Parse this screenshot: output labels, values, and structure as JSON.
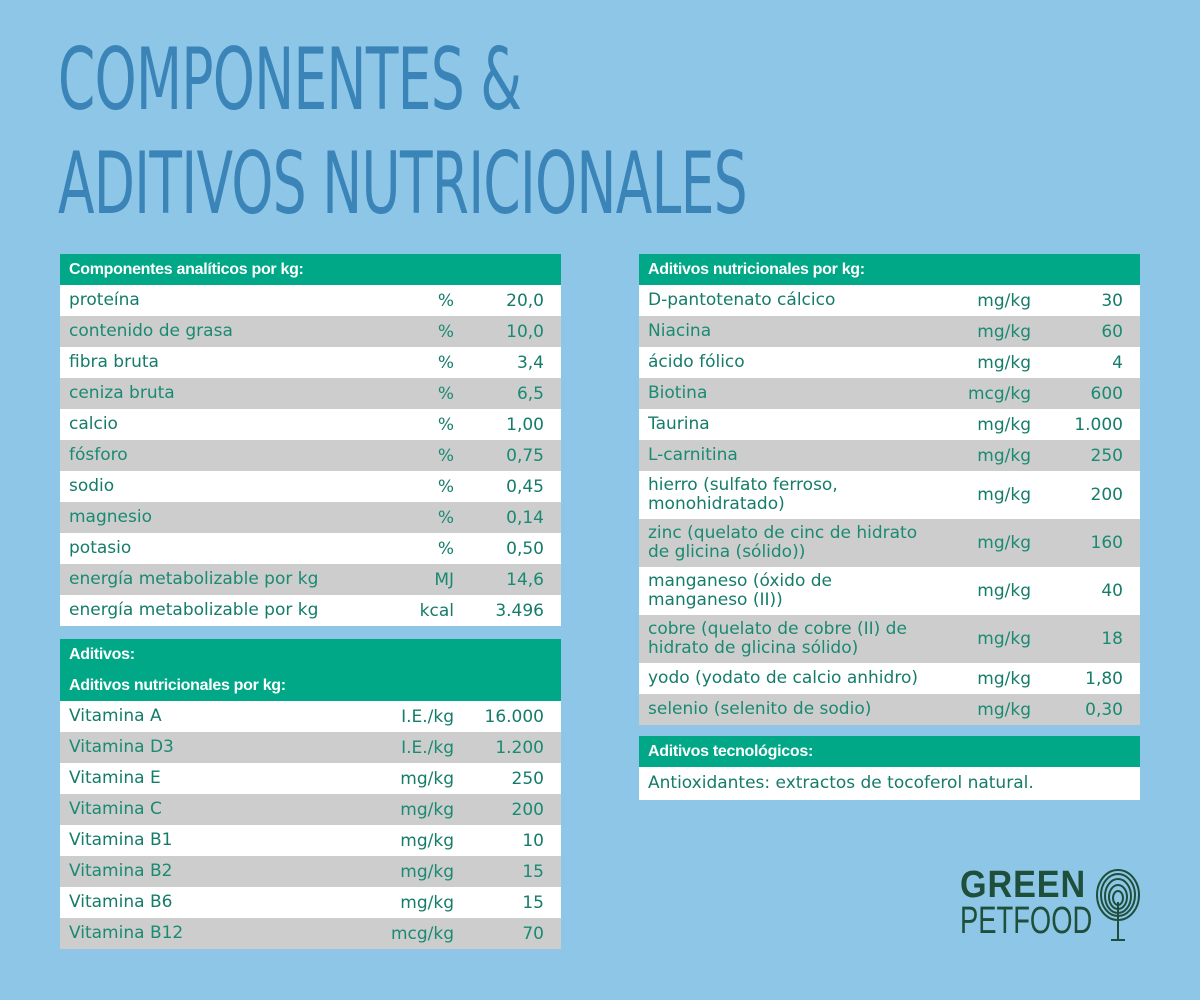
{
  "title": {
    "line1": "Componentes &",
    "line2": "Aditivos nutricionales"
  },
  "analytic": {
    "header": "Componentes analíticos por kg:",
    "rows": [
      {
        "name": "proteína",
        "unit": "%",
        "value": "20,0"
      },
      {
        "name": "contenido de grasa",
        "unit": "%",
        "value": "10,0"
      },
      {
        "name": "fibra bruta",
        "unit": "%",
        "value": "3,4"
      },
      {
        "name": "ceniza bruta",
        "unit": "%",
        "value": "6,5"
      },
      {
        "name": "calcio",
        "unit": "%",
        "value": "1,00"
      },
      {
        "name": "fósforo",
        "unit": "%",
        "value": "0,75"
      },
      {
        "name": "sodio",
        "unit": "%",
        "value": "0,45"
      },
      {
        "name": "magnesio",
        "unit": "%",
        "value": "0,14"
      },
      {
        "name": "potasio",
        "unit": "%",
        "value": "0,50"
      },
      {
        "name": "energía metabolizable por kg",
        "unit": "MJ",
        "value": "14,6"
      },
      {
        "name": "energía metabolizable por kg",
        "unit": "kcal",
        "value": "3.496"
      }
    ]
  },
  "additives": {
    "header": "Aditivos:",
    "subheader": "Aditivos nutricionales por kg:",
    "rows": [
      {
        "name": "Vitamina A",
        "unit": "I.E./kg",
        "value": "16.000"
      },
      {
        "name": "Vitamina D3",
        "unit": "I.E./kg",
        "value": "1.200"
      },
      {
        "name": "Vitamina E",
        "unit": "mg/kg",
        "value": "250"
      },
      {
        "name": "Vitamina C",
        "unit": "mg/kg",
        "value": "200"
      },
      {
        "name": "Vitamina B1",
        "unit": "mg/kg",
        "value": "10"
      },
      {
        "name": "Vitamina B2",
        "unit": "mg/kg",
        "value": "15"
      },
      {
        "name": "Vitamina B6",
        "unit": "mg/kg",
        "value": "15"
      },
      {
        "name": "Vitamina B12",
        "unit": "mcg/kg",
        "value": "70"
      }
    ]
  },
  "nutritional": {
    "header": "Aditivos nutricionales por kg:",
    "rows": [
      {
        "name": "D-pantotenato cálcico",
        "unit": "mg/kg",
        "value": "30"
      },
      {
        "name": "Niacina",
        "unit": "mg/kg",
        "value": "60"
      },
      {
        "name": "ácido fólico",
        "unit": "mg/kg",
        "value": "4"
      },
      {
        "name": "Biotina",
        "unit": "mcg/kg",
        "value": "600"
      },
      {
        "name": "Taurina",
        "unit": "mg/kg",
        "value": "1.000"
      },
      {
        "name": "L-carnitina",
        "unit": "mg/kg",
        "value": "250"
      },
      {
        "name": "hierro (sulfato ferroso, monohidratado)",
        "unit": "mg/kg",
        "value": "200"
      },
      {
        "name": "zinc (quelato de cinc de hidrato de glicina (sólido))",
        "unit": "mg/kg",
        "value": "160"
      },
      {
        "name": "manganeso (óxido de manganeso (II))",
        "unit": "mg/kg",
        "value": "40"
      },
      {
        "name": "cobre (quelato de cobre (II) de hidrato de glicina sólido)",
        "unit": "mg/kg",
        "value": "18"
      },
      {
        "name": "yodo (yodato de calcio anhidro)",
        "unit": "mg/kg",
        "value": "1,80"
      },
      {
        "name": "selenio (selenito de sodio)",
        "unit": "mg/kg",
        "value": "0,30"
      }
    ]
  },
  "technological": {
    "header": "Aditivos tecnológicos:",
    "text": "Antioxidantes: extractos de tocoferol natural."
  },
  "logo": {
    "line1": "GREEN",
    "line2": "PETFOOD",
    "icon": "fingerprint-tree-icon"
  }
}
